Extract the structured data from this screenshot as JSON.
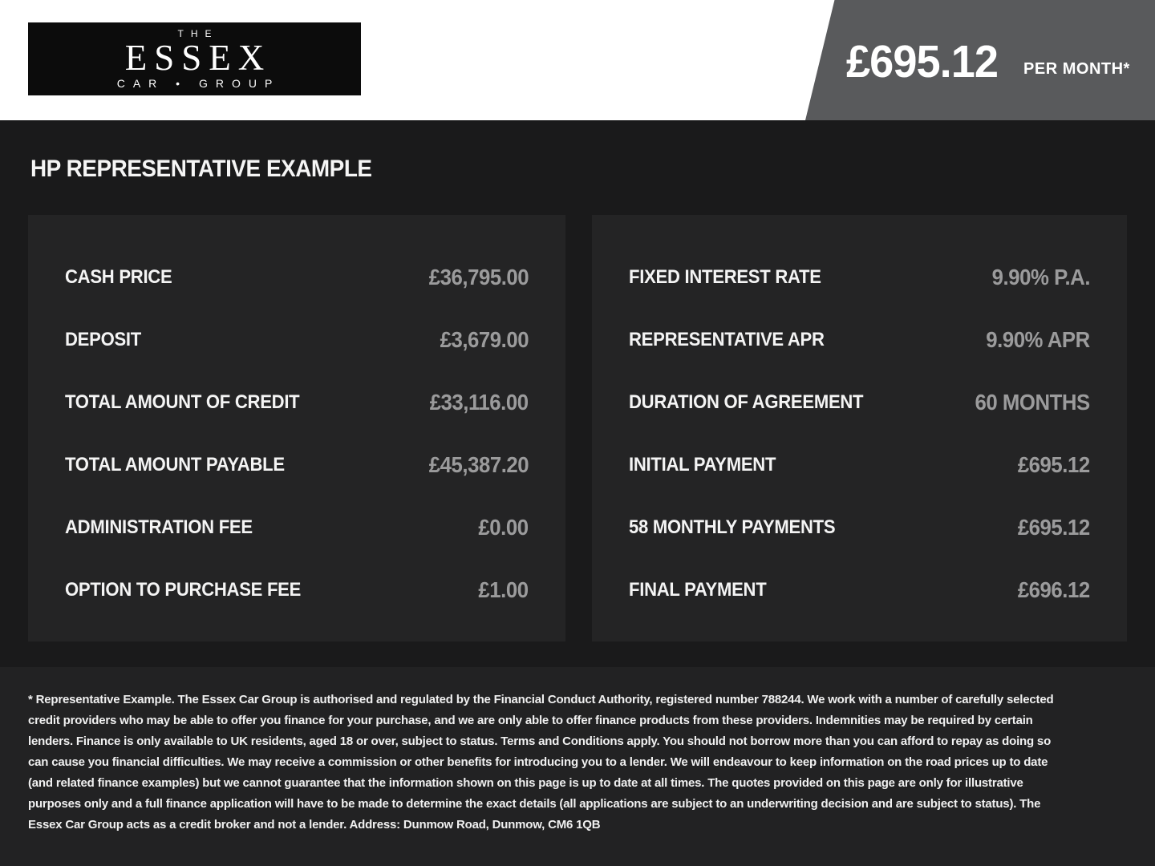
{
  "header": {
    "logo": {
      "top": "THE",
      "name": "ESSEX",
      "bottom": "CAR • GROUP"
    },
    "price_banner": {
      "amount": "£695.12",
      "suffix": "PER MONTH*"
    }
  },
  "main": {
    "heading": "HP REPRESENTATIVE EXAMPLE",
    "left_table": {
      "rows": [
        {
          "label": "CASH PRICE",
          "value": "£36,795.00"
        },
        {
          "label": "DEPOSIT",
          "value": "£3,679.00"
        },
        {
          "label": "TOTAL AMOUNT OF CREDIT",
          "value": "£33,116.00"
        },
        {
          "label": "TOTAL AMOUNT PAYABLE",
          "value": "£45,387.20"
        },
        {
          "label": "ADMINISTRATION FEE",
          "value": "£0.00"
        },
        {
          "label": "OPTION TO PURCHASE FEE",
          "value": "£1.00"
        }
      ]
    },
    "right_table": {
      "rows": [
        {
          "label": "FIXED INTEREST RATE",
          "value": "9.90% P.A."
        },
        {
          "label": "REPRESENTATIVE APR",
          "value": "9.90% APR"
        },
        {
          "label": "DURATION OF AGREEMENT",
          "value": "60 MONTHS"
        },
        {
          "label": "INITIAL PAYMENT",
          "value": "£695.12"
        },
        {
          "label": "58 MONTHLY PAYMENTS",
          "value": "£695.12"
        },
        {
          "label": "FINAL PAYMENT",
          "value": "£696.12"
        }
      ]
    }
  },
  "footer": {
    "disclaimer": "* Representative Example. The Essex Car Group is authorised and regulated by the Financial Conduct Authority, registered number 788244. We work with a number of carefully selected credit providers who may be able to offer you finance for your purchase, and we are only able to offer finance products from these providers. Indemnities may be required by certain lenders. Finance is only available to UK residents, aged 18 or over, subject to status. Terms and Conditions apply. You should not borrow more than you can afford to repay as doing so can cause you financial difficulties. We may receive a commission or other benefits for introducing you to a lender. We will endeavour to keep information on the road prices up to date (and related finance examples) but we cannot guarantee that the information shown on this page is up to date at all times. The quotes provided on this page are only for illustrative purposes only and a full finance application will have to be made to determine the exact details (all applications are subject to an underwriting decision and are subject to status). The Essex Car Group acts as a credit broker and not a lender. Address: Dunmow Road, Dunmow, CM6 1QB"
  },
  "colors": {
    "page_background": "#1a1a1b",
    "panel_background": "#242425",
    "footer_background": "#222223",
    "ribbon_gray": "#595a5c",
    "value_gray": "#9b9b9c",
    "header_white": "#ffffff"
  }
}
